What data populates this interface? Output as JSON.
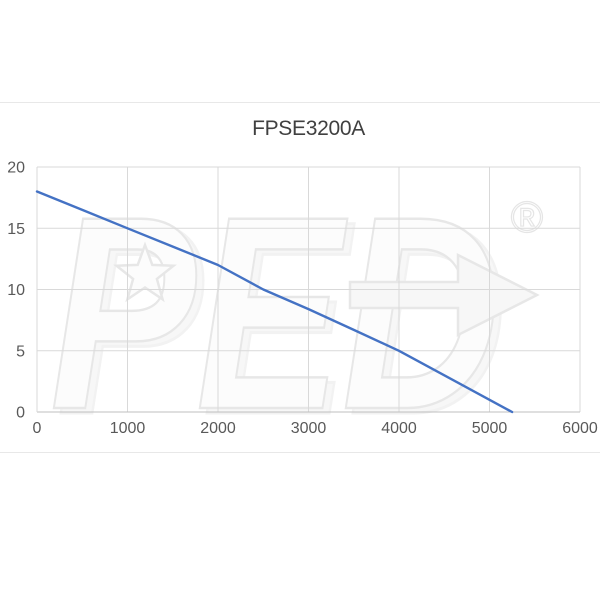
{
  "chart_data": {
    "type": "line",
    "title": "FPSE3200A",
    "xlabel": "",
    "ylabel": "",
    "xlim": [
      0,
      6000
    ],
    "ylim": [
      0,
      20
    ],
    "x_ticks": [
      0,
      1000,
      2000,
      3000,
      4000,
      5000,
      6000
    ],
    "y_ticks": [
      0,
      5,
      10,
      15,
      20
    ],
    "grid": true,
    "legend": false,
    "series": [
      {
        "name": "FPSE3200A",
        "color": "#4472c4",
        "points": [
          [
            0,
            18
          ],
          [
            500,
            16.5
          ],
          [
            1000,
            15
          ],
          [
            1500,
            13.5
          ],
          [
            2000,
            12
          ],
          [
            2500,
            10
          ],
          [
            3000,
            8.4
          ],
          [
            3500,
            6.7
          ],
          [
            4000,
            5
          ],
          [
            4500,
            3
          ],
          [
            5000,
            1
          ],
          [
            5250,
            0
          ]
        ]
      }
    ],
    "colors": {
      "grid": "#d9d9d9",
      "axis": "#bfbfbf",
      "tick_labels": "#595959",
      "title": "#404040"
    }
  },
  "watermark": {
    "text": "PED",
    "registered_mark": "®"
  }
}
